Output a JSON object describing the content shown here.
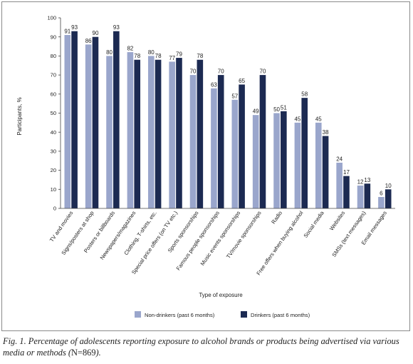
{
  "chart_data": {
    "type": "bar",
    "title": "",
    "xlabel": "Type of exposure",
    "ylabel": "Participants, %",
    "ylim": [
      0,
      100
    ],
    "yticks": [
      "0",
      "10",
      "20",
      "30",
      "40",
      "50",
      "60",
      "70",
      "80",
      "90",
      "100"
    ],
    "grid": false,
    "legend_position": "bottom",
    "categories": [
      "TV and movies",
      "Signs/posters at shop",
      "Posters or billboards",
      "Newspapers/magazines",
      "Clothing, T-shirts, etc.",
      "Special price offers (on TV etc.)",
      "Sports sponsorships",
      "Famous people sponsorships",
      "Music events sponsorships",
      "TV/movie sponsorships",
      "Radio",
      "Free offers when buying alcohol",
      "Social media",
      "Websites",
      "SMSs (text messages)",
      "Email messages"
    ],
    "series": [
      {
        "name": "Non-drinkers (past 6 months)",
        "color": "#9aa6cc",
        "values": [
          91,
          86,
          80,
          82,
          80,
          77,
          70,
          63,
          57,
          49,
          50,
          45,
          45,
          24,
          12,
          6
        ],
        "labels": [
          "91",
          "86",
          "80",
          "82",
          "80",
          "77",
          "70",
          "63",
          "57",
          "49",
          "50",
          "45",
          "45",
          "24",
          "12",
          "6"
        ]
      },
      {
        "name": "Drinkers (past 6 months)",
        "color": "#1c2a52",
        "values": [
          93,
          90,
          93,
          78,
          78,
          79,
          78,
          70,
          65,
          70,
          51,
          58,
          38,
          17,
          13,
          10
        ],
        "labels": [
          "93",
          "90",
          "93",
          "78",
          "78",
          "79",
          "78",
          "70",
          "65",
          "70",
          "51",
          "58",
          "38",
          "17",
          "13",
          "10"
        ]
      }
    ]
  },
  "caption": {
    "text": "Fig. 1. Percentage of adolescents reporting exposure to alcohol brands or products being advertised via various media or methods (",
    "n_text": "N=869",
    "end": ")."
  }
}
